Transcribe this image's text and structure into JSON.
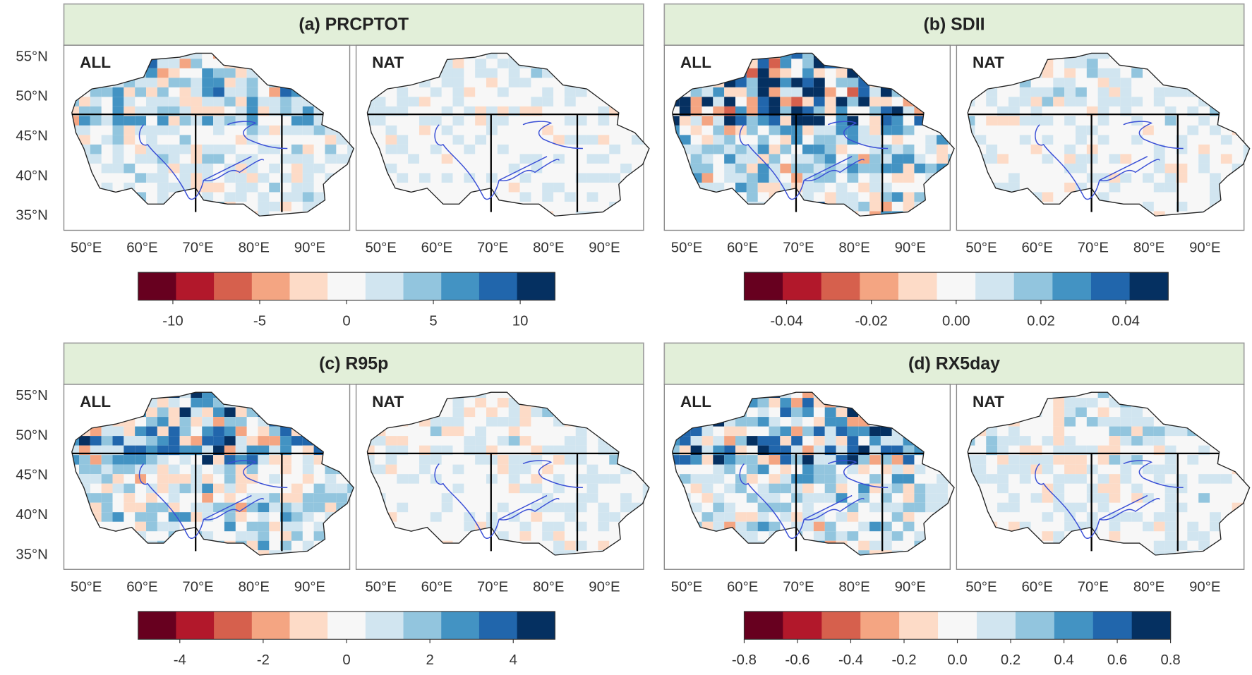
{
  "panels": [
    {
      "title": "(a) PRCPTOT",
      "maps": [
        {
          "label": "ALL"
        },
        {
          "label": "NAT"
        }
      ],
      "lat_ticks": [
        "55°N",
        "50°N",
        "45°N",
        "40°N",
        "35°N"
      ],
      "lon_ticks": [
        "50°E",
        "60°E",
        "70°E",
        "80°E",
        "90°E"
      ],
      "colorbar": {
        "lim": [
          -12,
          12
        ],
        "ticks": [
          -10,
          -5,
          0,
          5,
          10
        ]
      }
    },
    {
      "title": "(b) SDII",
      "maps": [
        {
          "label": "ALL"
        },
        {
          "label": "NAT"
        }
      ],
      "lon_ticks": [
        "50°E",
        "60°E",
        "70°E",
        "80°E",
        "90°E"
      ],
      "colorbar": {
        "lim": [
          -0.05,
          0.05
        ],
        "ticks": [
          -0.04,
          -0.02,
          {
            "value": 0,
            "label": "0.00"
          },
          0.02,
          0.04
        ]
      }
    },
    {
      "title": "(c) R95p",
      "maps": [
        {
          "label": "ALL"
        },
        {
          "label": "NAT"
        }
      ],
      "lat_ticks": [
        "55°N",
        "50°N",
        "45°N",
        "40°N",
        "35°N"
      ],
      "lon_ticks": [
        "50°E",
        "60°E",
        "70°E",
        "80°E",
        "90°E"
      ],
      "colorbar": {
        "lim": [
          -5,
          5
        ],
        "ticks": [
          -4,
          -2,
          0,
          2,
          4
        ]
      }
    },
    {
      "title": "(d) RX5day",
      "maps": [
        {
          "label": "ALL"
        },
        {
          "label": "NAT"
        }
      ],
      "lon_ticks": [
        "50°E",
        "60°E",
        "70°E",
        "80°E",
        "90°E"
      ],
      "colorbar": {
        "lim": [
          -0.8,
          0.8
        ],
        "ticks": [
          -0.8,
          -0.6,
          -0.4,
          -0.2,
          {
            "value": 0,
            "label": "0.0"
          },
          0.2,
          0.4,
          0.6,
          0.8
        ]
      }
    }
  ],
  "colorbar_colors": [
    "#67001f",
    "#b2182b",
    "#d6604d",
    "#f4a582",
    "#fddbc7",
    "#f7f7f7",
    "#d1e5f0",
    "#92c5de",
    "#4393c3",
    "#2166ac",
    "#053061"
  ]
}
